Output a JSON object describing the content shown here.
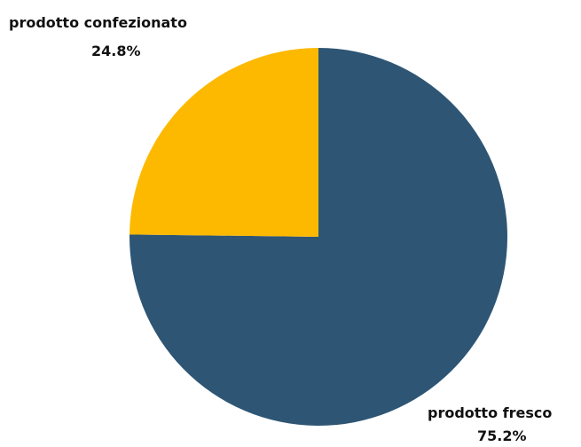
{
  "chart_data": {
    "type": "pie",
    "title": "",
    "slices": [
      {
        "label": "prodotto fresco",
        "value": 75.2,
        "value_label": "75.2%",
        "color": "#2e5574"
      },
      {
        "label": "prodotto confezionato",
        "value": 24.8,
        "value_label": "24.8%",
        "color": "#fdb900"
      }
    ],
    "start_angle": "12 o'clock",
    "direction": "clockwise",
    "legend": "none"
  }
}
